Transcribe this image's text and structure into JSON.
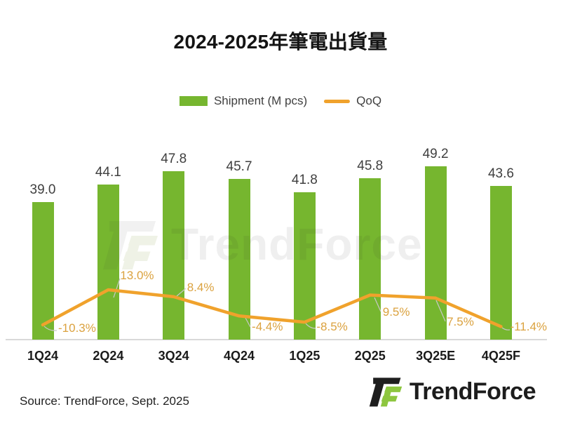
{
  "title": "2024-2025年筆電出貨量",
  "legend": {
    "shipment": "Shipment (M pcs)",
    "qoq": "QoQ"
  },
  "footer": {
    "source": "Source: TrendForce, Sept. 2025"
  },
  "branding": {
    "logo_text": "TrendForce",
    "watermark_text": "TrendForce"
  },
  "colors": {
    "bar": "#76b62f",
    "line": "#f0a22c",
    "qoq_label": "#dba23f",
    "value_label": "#3f3f3f",
    "x_label": "#1a1a1a",
    "axis_line": "#d9d9d9",
    "logo_green": "#8dc63f",
    "logo_black": "#1e1e1e",
    "leader_line": "#c8c8c8"
  },
  "chart_data": {
    "type": "bar",
    "title": "2024-2025年筆電出貨量",
    "categories": [
      "1Q24",
      "2Q24",
      "3Q24",
      "4Q24",
      "1Q25",
      "2Q25",
      "3Q25E",
      "4Q25F"
    ],
    "series": [
      {
        "name": "Shipment (M pcs)",
        "type": "bar",
        "unit": "M pcs",
        "color": "#76b62f",
        "values": [
          39.0,
          44.1,
          47.8,
          45.7,
          41.8,
          45.8,
          49.2,
          43.6
        ],
        "labels": [
          "39.0",
          "44.1",
          "47.8",
          "45.7",
          "41.8",
          "45.8",
          "49.2",
          "43.6"
        ]
      },
      {
        "name": "QoQ",
        "type": "line",
        "unit": "%",
        "color": "#f0a22c",
        "values": [
          -10.3,
          13.0,
          8.4,
          -4.4,
          -8.5,
          9.5,
          7.5,
          -11.4
        ],
        "labels": [
          "-10.3%",
          "13.0%",
          "8.4%",
          "-4.4%",
          "-8.5%",
          "9.5%",
          "7.5%",
          "-11.4%"
        ]
      }
    ],
    "xlabel": "",
    "ylabel": "",
    "legend_position": "top",
    "grid": false,
    "value_axis_visible": false
  }
}
